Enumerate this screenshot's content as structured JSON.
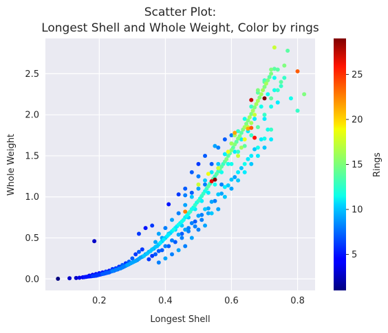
{
  "chart_data": {
    "type": "scatter",
    "title_lines": [
      "Scatter Plot:",
      "Longest Shell and Whole Weight, Color by rings"
    ],
    "xlabel": "Longest Shell",
    "ylabel": "Whole Weight",
    "colorbar_label": "Rings",
    "xlim": [
      0.037,
      0.853
    ],
    "ylim": [
      -0.14,
      2.93
    ],
    "xticks": [
      0.2,
      0.4,
      0.6,
      0.8
    ],
    "xtick_labels": [
      "0.2",
      "0.4",
      "0.6",
      "0.8"
    ],
    "yticks": [
      0.0,
      0.5,
      1.0,
      1.5,
      2.0,
      2.5
    ],
    "ytick_labels": [
      "0.0",
      "0.5",
      "1.0",
      "1.5",
      "2.0",
      "2.5"
    ],
    "color_range": [
      1,
      29
    ],
    "colorbar_ticks": [
      5,
      10,
      15,
      20,
      25
    ],
    "colorbar_tick_labels": [
      "5",
      "10",
      "15",
      "20",
      "25"
    ],
    "colormap": "jet",
    "grid": true,
    "background_color": "#eaeaf2",
    "points": [
      [
        0.075,
        0.002,
        1
      ],
      [
        0.11,
        0.008,
        3
      ],
      [
        0.13,
        0.012,
        3
      ],
      [
        0.14,
        0.015,
        4
      ],
      [
        0.15,
        0.02,
        4
      ],
      [
        0.155,
        0.022,
        5
      ],
      [
        0.16,
        0.025,
        4
      ],
      [
        0.165,
        0.028,
        5
      ],
      [
        0.17,
        0.03,
        5
      ],
      [
        0.175,
        0.032,
        5
      ],
      [
        0.18,
        0.035,
        6
      ],
      [
        0.185,
        0.038,
        5
      ],
      [
        0.19,
        0.04,
        6
      ],
      [
        0.195,
        0.045,
        6
      ],
      [
        0.2,
        0.05,
        6
      ],
      [
        0.205,
        0.055,
        6
      ],
      [
        0.21,
        0.06,
        7
      ],
      [
        0.215,
        0.065,
        6
      ],
      [
        0.22,
        0.07,
        7
      ],
      [
        0.225,
        0.075,
        7
      ],
      [
        0.23,
        0.08,
        7
      ],
      [
        0.235,
        0.09,
        7
      ],
      [
        0.24,
        0.095,
        8
      ],
      [
        0.245,
        0.1,
        7
      ],
      [
        0.25,
        0.11,
        8
      ],
      [
        0.255,
        0.115,
        7
      ],
      [
        0.26,
        0.125,
        8
      ],
      [
        0.265,
        0.13,
        8
      ],
      [
        0.27,
        0.14,
        8
      ],
      [
        0.275,
        0.15,
        8
      ],
      [
        0.28,
        0.16,
        8
      ],
      [
        0.285,
        0.17,
        9
      ],
      [
        0.29,
        0.18,
        8
      ],
      [
        0.295,
        0.19,
        9
      ],
      [
        0.3,
        0.2,
        9
      ],
      [
        0.305,
        0.21,
        9
      ],
      [
        0.31,
        0.22,
        9
      ],
      [
        0.315,
        0.23,
        8
      ],
      [
        0.32,
        0.245,
        9
      ],
      [
        0.325,
        0.26,
        9
      ],
      [
        0.33,
        0.27,
        9
      ],
      [
        0.335,
        0.28,
        10
      ],
      [
        0.34,
        0.3,
        9
      ],
      [
        0.345,
        0.31,
        10
      ],
      [
        0.35,
        0.33,
        9
      ],
      [
        0.355,
        0.34,
        10
      ],
      [
        0.36,
        0.36,
        10
      ],
      [
        0.365,
        0.37,
        9
      ],
      [
        0.37,
        0.39,
        10
      ],
      [
        0.375,
        0.4,
        10
      ],
      [
        0.38,
        0.42,
        10
      ],
      [
        0.385,
        0.44,
        11
      ],
      [
        0.39,
        0.46,
        10
      ],
      [
        0.395,
        0.48,
        11
      ],
      [
        0.4,
        0.5,
        10
      ],
      [
        0.405,
        0.52,
        11
      ],
      [
        0.41,
        0.54,
        11
      ],
      [
        0.415,
        0.56,
        10
      ],
      [
        0.42,
        0.58,
        11
      ],
      [
        0.425,
        0.6,
        12
      ],
      [
        0.43,
        0.62,
        11
      ],
      [
        0.435,
        0.64,
        11
      ],
      [
        0.44,
        0.66,
        12
      ],
      [
        0.445,
        0.68,
        11
      ],
      [
        0.45,
        0.7,
        12
      ],
      [
        0.455,
        0.72,
        12
      ],
      [
        0.46,
        0.75,
        11
      ],
      [
        0.465,
        0.77,
        12
      ],
      [
        0.47,
        0.8,
        12
      ],
      [
        0.475,
        0.82,
        13
      ],
      [
        0.48,
        0.85,
        12
      ],
      [
        0.485,
        0.87,
        12
      ],
      [
        0.49,
        0.9,
        13
      ],
      [
        0.495,
        0.93,
        12
      ],
      [
        0.5,
        0.95,
        13
      ],
      [
        0.505,
        0.98,
        12
      ],
      [
        0.51,
        1.01,
        13
      ],
      [
        0.515,
        1.04,
        13
      ],
      [
        0.52,
        1.07,
        12
      ],
      [
        0.525,
        1.1,
        13
      ],
      [
        0.53,
        1.13,
        14
      ],
      [
        0.535,
        1.16,
        13
      ],
      [
        0.54,
        1.19,
        13
      ],
      [
        0.545,
        1.22,
        14
      ],
      [
        0.55,
        1.25,
        13
      ],
      [
        0.555,
        1.28,
        14
      ],
      [
        0.56,
        1.31,
        13
      ],
      [
        0.565,
        1.34,
        14
      ],
      [
        0.57,
        1.37,
        14
      ],
      [
        0.575,
        1.4,
        13
      ],
      [
        0.58,
        1.43,
        14
      ],
      [
        0.585,
        1.46,
        15
      ],
      [
        0.59,
        1.5,
        14
      ],
      [
        0.595,
        1.53,
        14
      ],
      [
        0.6,
        1.57,
        15
      ],
      [
        0.605,
        1.6,
        14
      ],
      [
        0.61,
        1.64,
        15
      ],
      [
        0.615,
        1.67,
        14
      ],
      [
        0.62,
        1.71,
        15
      ],
      [
        0.625,
        1.74,
        15
      ],
      [
        0.63,
        1.78,
        14
      ],
      [
        0.635,
        1.82,
        15
      ],
      [
        0.64,
        1.85,
        16
      ],
      [
        0.645,
        1.89,
        15
      ],
      [
        0.65,
        1.93,
        15
      ],
      [
        0.655,
        1.97,
        16
      ],
      [
        0.66,
        2.01,
        15
      ],
      [
        0.665,
        2.05,
        16
      ],
      [
        0.67,
        2.09,
        15
      ],
      [
        0.675,
        2.13,
        16
      ],
      [
        0.68,
        2.17,
        16
      ],
      [
        0.685,
        2.21,
        15
      ],
      [
        0.69,
        2.25,
        16
      ],
      [
        0.695,
        2.3,
        16
      ],
      [
        0.7,
        2.34,
        15
      ],
      [
        0.705,
        2.38,
        16
      ],
      [
        0.71,
        2.42,
        15
      ],
      [
        0.715,
        2.46,
        14
      ],
      [
        0.72,
        2.5,
        15
      ],
      [
        0.73,
        2.56,
        14
      ],
      [
        0.38,
        0.34,
        7
      ],
      [
        0.4,
        0.4,
        8
      ],
      [
        0.42,
        0.47,
        8
      ],
      [
        0.44,
        0.54,
        9
      ],
      [
        0.46,
        0.6,
        9
      ],
      [
        0.48,
        0.68,
        8
      ],
      [
        0.5,
        0.77,
        9
      ],
      [
        0.52,
        0.85,
        10
      ],
      [
        0.54,
        0.94,
        9
      ],
      [
        0.56,
        1.03,
        10
      ],
      [
        0.58,
        1.12,
        11
      ],
      [
        0.6,
        1.21,
        10
      ],
      [
        0.62,
        1.3,
        11
      ],
      [
        0.64,
        1.4,
        12
      ],
      [
        0.66,
        1.5,
        11
      ],
      [
        0.68,
        1.6,
        12
      ],
      [
        0.7,
        1.71,
        12
      ],
      [
        0.72,
        1.82,
        13
      ],
      [
        0.38,
        0.55,
        9
      ],
      [
        0.4,
        0.62,
        8
      ],
      [
        0.42,
        0.72,
        9
      ],
      [
        0.44,
        0.8,
        8
      ],
      [
        0.46,
        0.9,
        9
      ],
      [
        0.48,
        1.0,
        10
      ],
      [
        0.5,
        1.1,
        9
      ],
      [
        0.52,
        1.2,
        10
      ],
      [
        0.54,
        1.3,
        11
      ],
      [
        0.56,
        1.4,
        10
      ],
      [
        0.58,
        1.52,
        11
      ],
      [
        0.6,
        1.65,
        12
      ],
      [
        0.62,
        1.8,
        13
      ],
      [
        0.64,
        1.95,
        12
      ],
      [
        0.66,
        2.1,
        13
      ],
      [
        0.68,
        2.27,
        14
      ],
      [
        0.7,
        2.42,
        13
      ],
      [
        0.45,
        0.55,
        7
      ],
      [
        0.47,
        0.62,
        8
      ],
      [
        0.49,
        0.7,
        7
      ],
      [
        0.51,
        0.78,
        8
      ],
      [
        0.53,
        0.86,
        9
      ],
      [
        0.55,
        0.95,
        8
      ],
      [
        0.57,
        1.04,
        9
      ],
      [
        0.59,
        1.14,
        10
      ],
      [
        0.61,
        1.24,
        9
      ],
      [
        0.63,
        1.35,
        10
      ],
      [
        0.65,
        1.46,
        11
      ],
      [
        0.67,
        1.58,
        10
      ],
      [
        0.69,
        1.7,
        11
      ],
      [
        0.71,
        1.82,
        12
      ],
      [
        0.5,
        1.15,
        17
      ],
      [
        0.53,
        1.28,
        18
      ],
      [
        0.56,
        1.35,
        17
      ],
      [
        0.59,
        1.55,
        18
      ],
      [
        0.6,
        1.65,
        16
      ],
      [
        0.62,
        1.5,
        17
      ],
      [
        0.65,
        1.85,
        17
      ],
      [
        0.64,
        1.7,
        18
      ],
      [
        0.63,
        1.6,
        16
      ],
      [
        0.67,
        2.0,
        17
      ],
      [
        0.61,
        1.75,
        16
      ],
      [
        0.66,
        1.9,
        16
      ],
      [
        0.68,
        2.3,
        15
      ],
      [
        0.7,
        2.4,
        14
      ],
      [
        0.74,
        2.55,
        14
      ],
      [
        0.76,
        2.6,
        15
      ],
      [
        0.73,
        2.82,
        17
      ],
      [
        0.77,
        2.78,
        14
      ],
      [
        0.82,
        2.25,
        15
      ],
      [
        0.8,
        2.05,
        13
      ],
      [
        0.78,
        2.2,
        12
      ],
      [
        0.75,
        2.35,
        13
      ],
      [
        0.72,
        2.1,
        12
      ],
      [
        0.74,
        2.15,
        11
      ],
      [
        0.76,
        2.45,
        13
      ],
      [
        0.7,
        1.95,
        11
      ],
      [
        0.73,
        2.3,
        12
      ],
      [
        0.72,
        2.55,
        15
      ],
      [
        0.8,
        2.53,
        23
      ],
      [
        0.66,
        2.18,
        27
      ],
      [
        0.7,
        2.2,
        29
      ],
      [
        0.55,
        1.21,
        29
      ],
      [
        0.54,
        1.19,
        26
      ],
      [
        0.67,
        1.72,
        25
      ],
      [
        0.65,
        1.83,
        21
      ],
      [
        0.66,
        1.84,
        23
      ],
      [
        0.46,
        0.82,
        22
      ],
      [
        0.61,
        1.78,
        21
      ],
      [
        0.185,
        0.46,
        3
      ],
      [
        0.41,
        0.91,
        5
      ],
      [
        0.32,
        0.55,
        6
      ],
      [
        0.34,
        0.62,
        5
      ],
      [
        0.36,
        0.65,
        6
      ],
      [
        0.48,
        1.3,
        7
      ],
      [
        0.5,
        1.4,
        6
      ],
      [
        0.52,
        1.5,
        7
      ],
      [
        0.56,
        1.6,
        8
      ],
      [
        0.58,
        1.7,
        7
      ],
      [
        0.6,
        1.75,
        8
      ],
      [
        0.44,
        1.03,
        6
      ],
      [
        0.46,
        1.1,
        7
      ],
      [
        0.5,
        1.25,
        8
      ],
      [
        0.54,
        1.4,
        7
      ],
      [
        0.46,
        1.02,
        8
      ],
      [
        0.48,
        1.05,
        7
      ],
      [
        0.52,
        1.15,
        8
      ],
      [
        0.55,
        1.62,
        9
      ],
      [
        0.57,
        1.15,
        8
      ],
      [
        0.38,
        0.2,
        8
      ],
      [
        0.4,
        0.25,
        9
      ],
      [
        0.42,
        0.3,
        8
      ],
      [
        0.44,
        0.35,
        9
      ],
      [
        0.46,
        0.4,
        8
      ],
      [
        0.48,
        0.5,
        9
      ],
      [
        0.5,
        0.6,
        8
      ],
      [
        0.52,
        0.65,
        9
      ],
      [
        0.54,
        0.8,
        10
      ],
      [
        0.56,
        0.85,
        9
      ],
      [
        0.58,
        1.0,
        10
      ],
      [
        0.6,
        1.1,
        9
      ],
      [
        0.62,
        1.2,
        10
      ],
      [
        0.64,
        1.3,
        11
      ],
      [
        0.66,
        1.4,
        10
      ],
      [
        0.68,
        1.5,
        11
      ],
      [
        0.7,
        1.6,
        10
      ],
      [
        0.72,
        1.7,
        11
      ],
      [
        0.3,
        0.25,
        7
      ],
      [
        0.31,
        0.3,
        6
      ],
      [
        0.32,
        0.33,
        7
      ],
      [
        0.33,
        0.36,
        6
      ],
      [
        0.29,
        0.21,
        7
      ],
      [
        0.28,
        0.19,
        6
      ],
      [
        0.27,
        0.17,
        7
      ],
      [
        0.26,
        0.15,
        6
      ],
      [
        0.25,
        0.13,
        6
      ],
      [
        0.24,
        0.12,
        6
      ],
      [
        0.23,
        0.1,
        5
      ],
      [
        0.22,
        0.09,
        6
      ],
      [
        0.21,
        0.08,
        5
      ],
      [
        0.2,
        0.07,
        5
      ],
      [
        0.19,
        0.06,
        5
      ],
      [
        0.18,
        0.05,
        4
      ],
      [
        0.17,
        0.04,
        4
      ],
      [
        0.35,
        0.24,
        6
      ],
      [
        0.36,
        0.28,
        6
      ],
      [
        0.37,
        0.3,
        7
      ],
      [
        0.39,
        0.35,
        7
      ],
      [
        0.41,
        0.4,
        7
      ],
      [
        0.43,
        0.45,
        7
      ],
      [
        0.45,
        0.5,
        8
      ],
      [
        0.47,
        0.58,
        8
      ],
      [
        0.49,
        0.64,
        8
      ],
      [
        0.51,
        0.72,
        8
      ],
      [
        0.53,
        0.8,
        9
      ],
      [
        0.6,
        1.4,
        12
      ],
      [
        0.62,
        1.55,
        13
      ],
      [
        0.64,
        1.62,
        14
      ],
      [
        0.66,
        1.75,
        13
      ],
      [
        0.68,
        1.85,
        14
      ],
      [
        0.7,
        2.0,
        13
      ],
      [
        0.72,
        2.2,
        14
      ],
      [
        0.74,
        2.3,
        13
      ],
      [
        0.75,
        2.4,
        14
      ],
      [
        0.73,
        2.45,
        12
      ],
      [
        0.71,
        2.25,
        12
      ],
      [
        0.69,
        2.1,
        12
      ],
      [
        0.67,
        1.95,
        11
      ],
      [
        0.65,
        1.8,
        11
      ],
      [
        0.63,
        1.7,
        11
      ],
      [
        0.61,
        1.55,
        11
      ],
      [
        0.59,
        1.4,
        12
      ],
      [
        0.57,
        1.3,
        12
      ],
      [
        0.55,
        1.15,
        12
      ],
      [
        0.53,
        1.05,
        11
      ],
      [
        0.51,
        0.95,
        11
      ],
      [
        0.49,
        0.85,
        11
      ],
      [
        0.47,
        0.75,
        10
      ],
      [
        0.45,
        0.65,
        10
      ],
      [
        0.43,
        0.6,
        10
      ],
      [
        0.41,
        0.55,
        10
      ],
      [
        0.39,
        0.5,
        9
      ],
      [
        0.37,
        0.45,
        9
      ]
    ]
  }
}
